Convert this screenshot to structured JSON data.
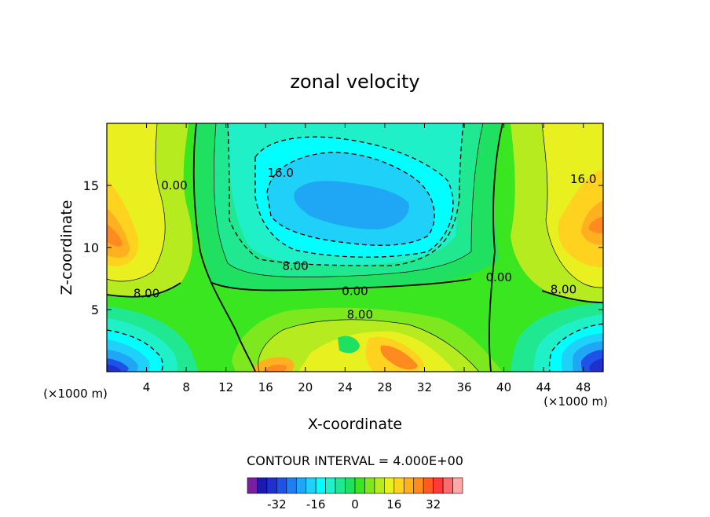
{
  "chart_data": {
    "type": "heatmap",
    "subtype": "filled-contour",
    "title": "zonal velocity",
    "xlabel": "X-coordinate",
    "ylabel": "Z-coordinate",
    "x_unit_note": "(×1000 m)",
    "y_unit_note": "(×1000 m)",
    "xlim": [
      0,
      50
    ],
    "ylim": [
      0,
      20
    ],
    "x_ticks": [
      4,
      8,
      12,
      16,
      20,
      24,
      28,
      32,
      36,
      40,
      44,
      48
    ],
    "y_ticks": [
      5,
      10,
      15
    ],
    "contour_interval_text": "CONTOUR INTERVAL = 4.000E+00",
    "contour_labels": [
      {
        "text": "16.0",
        "x": 17.5,
        "y": 16
      },
      {
        "text": "0.00",
        "x": 6.8,
        "y": 15
      },
      {
        "text": "16.0",
        "x": 48,
        "y": 15.5
      },
      {
        "text": "8.00",
        "x": 19,
        "y": 8.5
      },
      {
        "text": "8.00",
        "x": 4,
        "y": 6.3
      },
      {
        "text": "0.00",
        "x": 25,
        "y": 6.5
      },
      {
        "text": "0.00",
        "x": 39.5,
        "y": 7.6
      },
      {
        "text": "8.00",
        "x": 46,
        "y": 6.6
      },
      {
        "text": "8.00",
        "x": 25.5,
        "y": 4.6
      }
    ],
    "colorbar": {
      "levels": [
        -40,
        -36,
        -32,
        -28,
        -24,
        -20,
        -16,
        -12,
        -8,
        -4,
        0,
        4,
        8,
        12,
        16,
        20,
        24,
        28,
        32,
        36,
        40
      ],
      "colors": [
        "#7a1fa2",
        "#1a1ab0",
        "#1f2fd0",
        "#1f52e8",
        "#1f7ef0",
        "#1fa6f5",
        "#1fd0f8",
        "#00ffff",
        "#1ff0c8",
        "#1fe890",
        "#1fe060",
        "#3ae61f",
        "#7ee81f",
        "#b6ec1f",
        "#e8f01f",
        "#ffd21f",
        "#ffb01f",
        "#ff8a1f",
        "#ff5a1f",
        "#ff3838",
        "#ff6a6a",
        "#ffa8a8"
      ],
      "tick_labels": [
        "-32",
        "-16",
        "0",
        "16",
        "32"
      ],
      "tick_values": [
        -32,
        -16,
        0,
        16,
        32
      ]
    }
  }
}
